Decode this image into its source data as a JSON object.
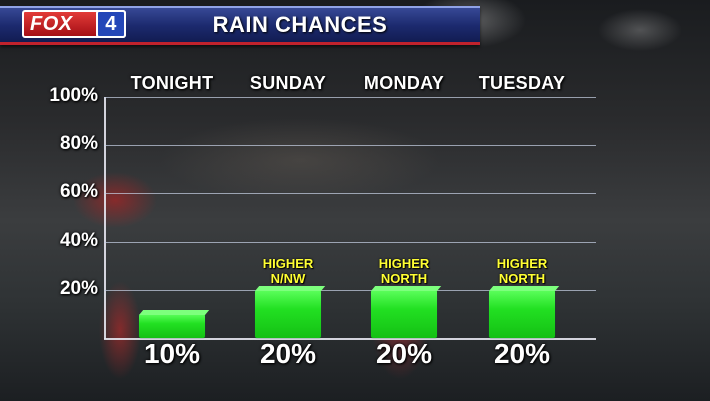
{
  "header": {
    "logo_text": "FOX",
    "logo_number": "4",
    "title": "RAIN CHANCES"
  },
  "colors": {
    "bar_green": "#22e022",
    "note_yellow": "#ffff33",
    "header_blue": "#1c2a6e",
    "header_red": "#c0222c"
  },
  "chart_data": {
    "type": "bar",
    "title": "RAIN CHANCES",
    "categories": [
      "TONIGHT",
      "SUNDAY",
      "MONDAY",
      "TUESDAY"
    ],
    "values": [
      10,
      20,
      20,
      20
    ],
    "value_labels": [
      "10%",
      "20%",
      "20%",
      "20%"
    ],
    "annotations": [
      "",
      "HIGHER N/NW",
      "HIGHER NORTH",
      "HIGHER NORTH"
    ],
    "ylim": [
      0,
      100
    ],
    "yticks": [
      "20%",
      "40%",
      "60%",
      "80%",
      "100%"
    ],
    "grid": true
  }
}
